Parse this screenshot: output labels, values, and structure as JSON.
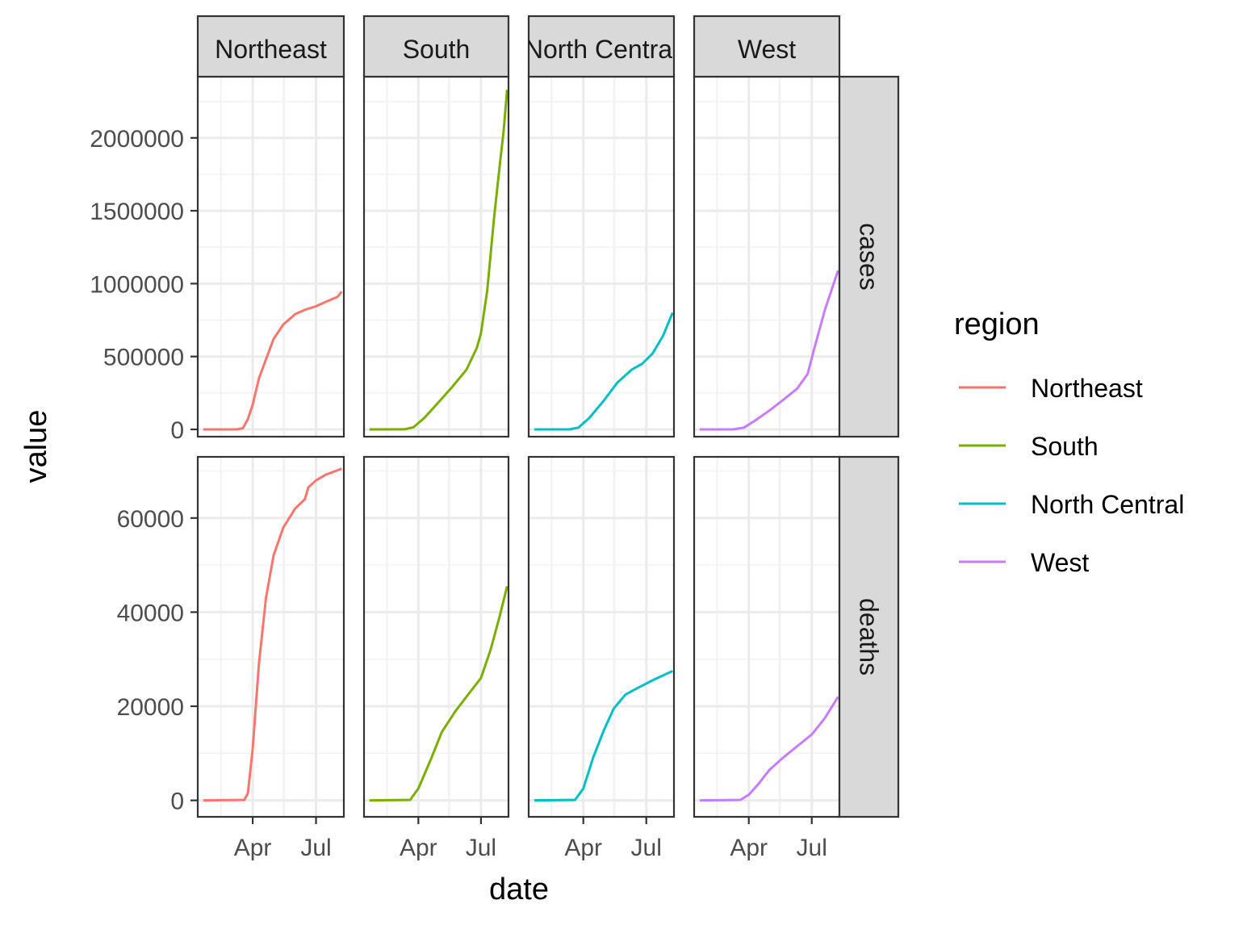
{
  "chart_data": {
    "type": "line",
    "facet_cols": [
      "Northeast",
      "South",
      "North Central",
      "West"
    ],
    "facet_rows": [
      "cases",
      "deaths"
    ],
    "xlabel": "date",
    "ylabel": "value",
    "x_tick_labels": [
      "Apr",
      "Jul"
    ],
    "x_ticks": [
      "2020-04-01",
      "2020-07-01"
    ],
    "xlim": [
      "2020-01-13",
      "2020-08-10"
    ],
    "y_ticks": {
      "cases": [
        0,
        500000,
        1000000,
        1500000,
        2000000
      ],
      "deaths": [
        0,
        20000,
        40000,
        60000
      ]
    },
    "y_tick_labels": {
      "cases": [
        "0",
        "500000",
        "1000000",
        "1500000",
        "2000000"
      ],
      "deaths": [
        "0",
        "20000",
        "40000",
        "60000"
      ]
    },
    "ylim": {
      "cases": [
        -50000,
        2420000
      ],
      "deaths": [
        -3500,
        73000
      ]
    },
    "grid": true,
    "legend": {
      "title": "region",
      "position": "right",
      "entries": [
        "Northeast",
        "South",
        "North Central",
        "West"
      ]
    },
    "colors": {
      "Northeast": "#F8766D",
      "South": "#7CAE00",
      "North Central": "#00BFC4",
      "West": "#C77CFF"
    },
    "series": [
      {
        "name": "Northeast",
        "facet_row": "cases",
        "points": [
          [
            "2020-01-21",
            0
          ],
          [
            "2020-03-10",
            500
          ],
          [
            "2020-03-18",
            8000
          ],
          [
            "2020-03-25",
            70000
          ],
          [
            "2020-04-01",
            170000
          ],
          [
            "2020-04-10",
            350000
          ],
          [
            "2020-04-20",
            480000
          ],
          [
            "2020-05-01",
            620000
          ],
          [
            "2020-05-15",
            720000
          ],
          [
            "2020-06-01",
            790000
          ],
          [
            "2020-06-15",
            820000
          ],
          [
            "2020-07-01",
            845000
          ],
          [
            "2020-07-15",
            875000
          ],
          [
            "2020-08-01",
            910000
          ],
          [
            "2020-08-07",
            945000
          ]
        ]
      },
      {
        "name": "South",
        "facet_row": "cases",
        "points": [
          [
            "2020-01-21",
            0
          ],
          [
            "2020-03-12",
            500
          ],
          [
            "2020-03-25",
            15000
          ],
          [
            "2020-04-10",
            80000
          ],
          [
            "2020-05-01",
            190000
          ],
          [
            "2020-05-20",
            290000
          ],
          [
            "2020-06-10",
            410000
          ],
          [
            "2020-06-25",
            560000
          ],
          [
            "2020-07-01",
            660000
          ],
          [
            "2020-07-10",
            950000
          ],
          [
            "2020-07-20",
            1450000
          ],
          [
            "2020-07-28",
            1800000
          ],
          [
            "2020-08-03",
            2050000
          ],
          [
            "2020-08-08",
            2330000
          ]
        ]
      },
      {
        "name": "North Central",
        "facet_row": "cases",
        "points": [
          [
            "2020-01-21",
            0
          ],
          [
            "2020-03-12",
            500
          ],
          [
            "2020-03-25",
            12000
          ],
          [
            "2020-04-10",
            80000
          ],
          [
            "2020-05-01",
            200000
          ],
          [
            "2020-05-20",
            320000
          ],
          [
            "2020-06-10",
            410000
          ],
          [
            "2020-06-25",
            450000
          ],
          [
            "2020-07-10",
            520000
          ],
          [
            "2020-07-25",
            640000
          ],
          [
            "2020-08-08",
            800000
          ]
        ]
      },
      {
        "name": "West",
        "facet_row": "cases",
        "points": [
          [
            "2020-01-21",
            0
          ],
          [
            "2020-03-10",
            500
          ],
          [
            "2020-03-25",
            12000
          ],
          [
            "2020-04-10",
            60000
          ],
          [
            "2020-05-01",
            130000
          ],
          [
            "2020-05-20",
            200000
          ],
          [
            "2020-06-10",
            280000
          ],
          [
            "2020-06-25",
            380000
          ],
          [
            "2020-07-05",
            560000
          ],
          [
            "2020-07-20",
            820000
          ],
          [
            "2020-08-08",
            1090000
          ]
        ]
      },
      {
        "name": "Northeast",
        "facet_row": "deaths",
        "points": [
          [
            "2020-01-21",
            0
          ],
          [
            "2020-03-20",
            100
          ],
          [
            "2020-03-25",
            1500
          ],
          [
            "2020-04-01",
            11000
          ],
          [
            "2020-04-10",
            29000
          ],
          [
            "2020-04-20",
            43000
          ],
          [
            "2020-05-01",
            52000
          ],
          [
            "2020-05-15",
            58000
          ],
          [
            "2020-06-01",
            62000
          ],
          [
            "2020-06-15",
            64000
          ],
          [
            "2020-06-20",
            66500
          ],
          [
            "2020-07-01",
            68000
          ],
          [
            "2020-07-15",
            69200
          ],
          [
            "2020-08-07",
            70500
          ]
        ]
      },
      {
        "name": "South",
        "facet_row": "deaths",
        "points": [
          [
            "2020-01-21",
            0
          ],
          [
            "2020-03-20",
            100
          ],
          [
            "2020-04-01",
            2500
          ],
          [
            "2020-04-20",
            9000
          ],
          [
            "2020-05-05",
            14500
          ],
          [
            "2020-05-25",
            19000
          ],
          [
            "2020-06-15",
            23000
          ],
          [
            "2020-07-01",
            26000
          ],
          [
            "2020-07-15",
            32000
          ],
          [
            "2020-07-28",
            39000
          ],
          [
            "2020-08-08",
            45500
          ]
        ]
      },
      {
        "name": "North Central",
        "facet_row": "deaths",
        "points": [
          [
            "2020-01-21",
            0
          ],
          [
            "2020-03-20",
            100
          ],
          [
            "2020-04-01",
            2500
          ],
          [
            "2020-04-15",
            9000
          ],
          [
            "2020-05-01",
            15000
          ],
          [
            "2020-05-15",
            19500
          ],
          [
            "2020-06-01",
            22500
          ],
          [
            "2020-06-20",
            24000
          ],
          [
            "2020-07-10",
            25500
          ],
          [
            "2020-08-08",
            27500
          ]
        ]
      },
      {
        "name": "West",
        "facet_row": "deaths",
        "points": [
          [
            "2020-01-21",
            0
          ],
          [
            "2020-03-20",
            100
          ],
          [
            "2020-04-01",
            1200
          ],
          [
            "2020-04-15",
            3500
          ],
          [
            "2020-05-01",
            6500
          ],
          [
            "2020-05-20",
            9000
          ],
          [
            "2020-06-10",
            11500
          ],
          [
            "2020-07-01",
            14000
          ],
          [
            "2020-07-20",
            17500
          ],
          [
            "2020-08-08",
            22000
          ]
        ]
      }
    ]
  }
}
